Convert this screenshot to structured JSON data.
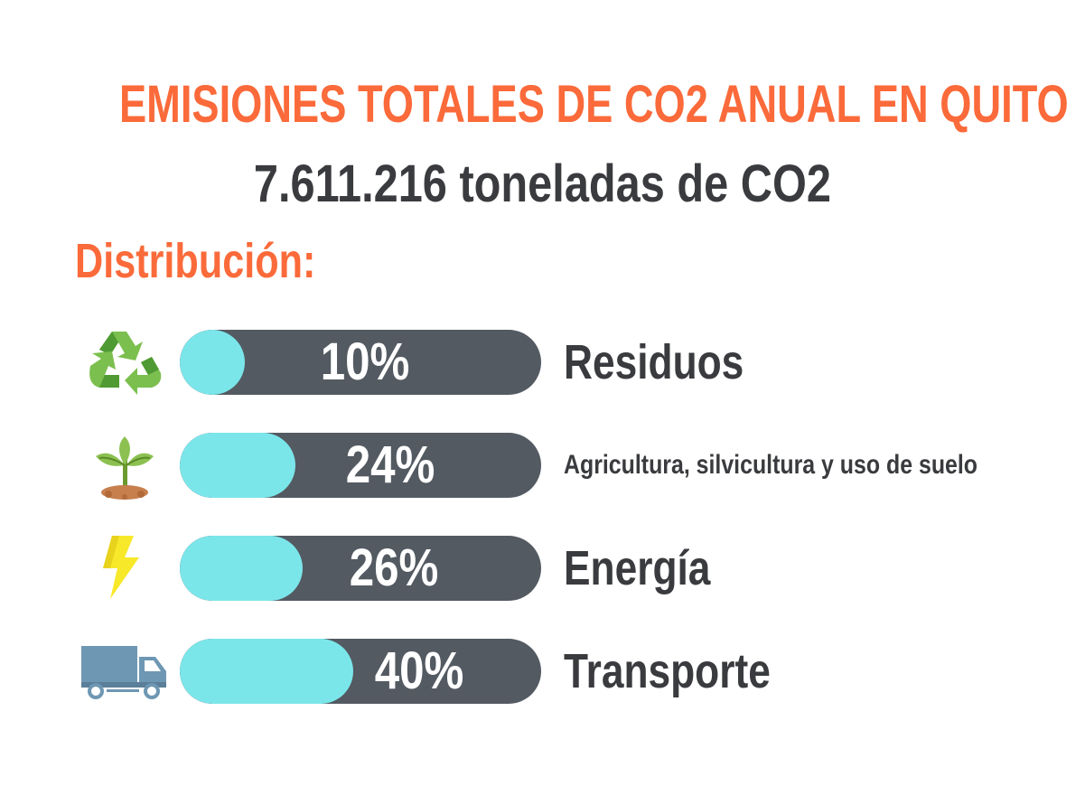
{
  "title": "EMISIONES TOTALES DE CO2 ANUAL EN QUITO",
  "subtitle": "7.611.216 toneladas de CO2",
  "section_label": "Distribución:",
  "colors": {
    "accent": "#fb6a3a",
    "text": "#3a3b3e",
    "bar_track": "#535a62",
    "bar_fill": "#7be6ea"
  },
  "items": [
    {
      "icon": "recycle-icon",
      "percent_label": "10%",
      "category": "Residuos"
    },
    {
      "icon": "plant-sprout-icon",
      "percent_label": "24%",
      "category": "Agricultura, silvicultura y uso de suelo"
    },
    {
      "icon": "lightning-bolt-icon",
      "percent_label": "26%",
      "category": "Energía"
    },
    {
      "icon": "truck-icon",
      "percent_label": "40%",
      "category": "Transporte"
    }
  ],
  "chart_data": {
    "type": "bar",
    "title": "EMISIONES TOTALES DE CO2 ANUAL EN QUITO",
    "subtitle": "7.611.216 toneladas de CO2",
    "categories": [
      "Residuos",
      "Agricultura, silvicultura y uso de suelo",
      "Energía",
      "Transporte"
    ],
    "values": [
      10,
      24,
      26,
      40
    ],
    "ylim": [
      0,
      100
    ]
  }
}
